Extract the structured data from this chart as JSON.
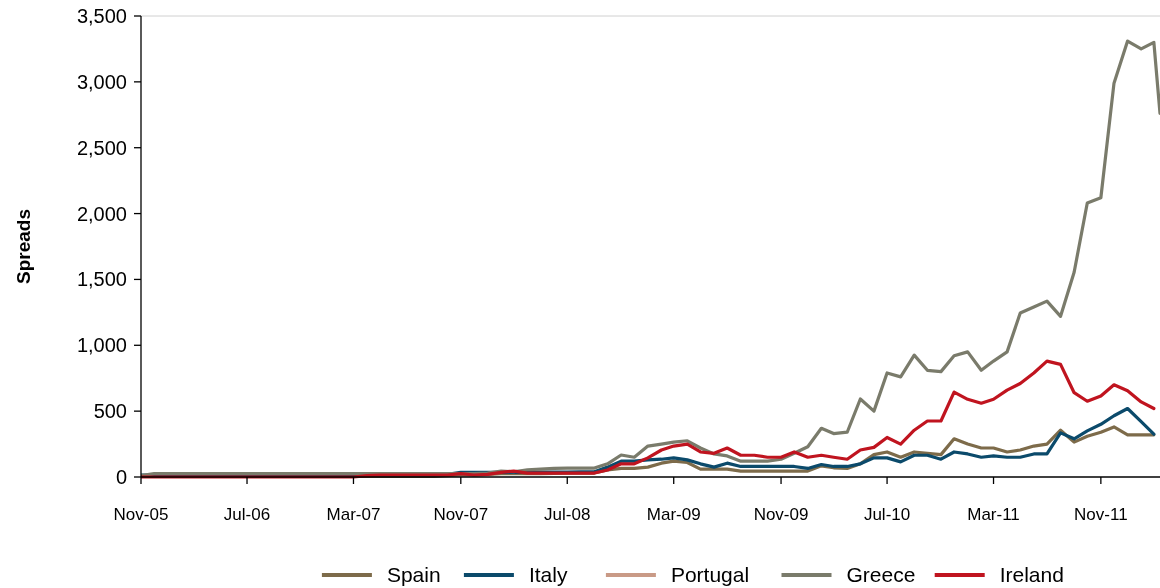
{
  "chart_data": {
    "type": "line",
    "ylabel": "Spreads",
    "x": [
      "2005-11",
      "2005-12",
      "2006-01",
      "2006-02",
      "2006-03",
      "2006-04",
      "2006-05",
      "2006-06",
      "2006-07",
      "2006-08",
      "2006-09",
      "2006-10",
      "2006-11",
      "2006-12",
      "2007-01",
      "2007-02",
      "2007-03",
      "2007-04",
      "2007-05",
      "2007-06",
      "2007-07",
      "2007-08",
      "2007-09",
      "2007-10",
      "2007-11",
      "2007-12",
      "2008-01",
      "2008-02",
      "2008-03",
      "2008-04",
      "2008-05",
      "2008-06",
      "2008-07",
      "2008-08",
      "2008-09",
      "2008-10",
      "2008-11",
      "2008-12",
      "2009-01",
      "2009-02",
      "2009-03",
      "2009-04",
      "2009-05",
      "2009-06",
      "2009-07",
      "2009-08",
      "2009-09",
      "2009-10",
      "2009-11",
      "2009-12",
      "2010-01",
      "2010-02",
      "2010-03",
      "2010-04",
      "2010-05",
      "2010-06",
      "2010-07",
      "2010-08",
      "2010-09",
      "2010-10",
      "2010-11",
      "2010-12",
      "2011-01",
      "2011-02",
      "2011-03",
      "2011-04",
      "2011-05",
      "2011-06",
      "2011-07",
      "2011-08",
      "2011-09",
      "2011-10",
      "2011-11",
      "2011-12",
      "2012-01",
      "2012-02",
      "2012-03",
      "2012-03-15"
    ],
    "series": [
      {
        "name": "Spain",
        "color": "#7d6b4a",
        "values": [
          5,
          5,
          5,
          5,
          5,
          5,
          5,
          5,
          5,
          5,
          5,
          5,
          5,
          5,
          5,
          5,
          5,
          5,
          5,
          5,
          5,
          5,
          5,
          10,
          15,
          15,
          20,
          25,
          25,
          25,
          25,
          28,
          30,
          30,
          30,
          53,
          65,
          65,
          75,
          105,
          120,
          110,
          60,
          60,
          60,
          45,
          45,
          45,
          45,
          45,
          45,
          85,
          70,
          65,
          100,
          170,
          190,
          150,
          190,
          180,
          170,
          290,
          250,
          220,
          220,
          190,
          205,
          235,
          250,
          355,
          265,
          310,
          340,
          380,
          320,
          320,
          320,
          null
        ]
      },
      {
        "name": "Italy",
        "color": "#0b4a6b",
        "values": [
          15,
          15,
          15,
          15,
          15,
          15,
          15,
          15,
          15,
          15,
          15,
          15,
          15,
          15,
          15,
          15,
          15,
          15,
          15,
          15,
          15,
          15,
          15,
          20,
          35,
          35,
          35,
          35,
          35,
          35,
          38,
          38,
          38,
          40,
          40,
          75,
          120,
          120,
          130,
          135,
          145,
          130,
          100,
          75,
          105,
          80,
          80,
          80,
          80,
          80,
          65,
          95,
          80,
          80,
          100,
          145,
          145,
          115,
          165,
          165,
          135,
          190,
          175,
          150,
          160,
          150,
          150,
          175,
          175,
          335,
          290,
          350,
          400,
          465,
          520,
          420,
          325,
          null
        ]
      },
      {
        "name": "Portugal",
        "color": "#c99a86",
        "values": [
          null,
          null,
          null,
          null,
          null,
          null,
          null,
          null,
          null,
          null,
          null,
          null,
          null,
          null,
          null,
          null,
          null,
          null,
          null,
          null,
          null,
          null,
          null,
          null,
          null,
          null,
          null,
          null,
          null,
          null,
          null,
          null,
          null,
          null,
          null,
          null,
          null,
          null,
          null,
          null,
          null,
          null,
          null,
          null,
          null,
          null,
          null,
          null,
          null,
          null,
          null,
          null,
          null,
          null,
          null,
          null,
          null,
          null,
          null,
          null,
          null,
          null,
          null,
          null,
          null,
          null,
          null,
          null,
          null,
          null,
          null,
          null,
          null,
          null,
          null,
          null,
          null,
          null
        ]
      },
      {
        "name": "Greece",
        "color": "#7a7b6b",
        "values": [
          10,
          25,
          25,
          25,
          25,
          25,
          25,
          25,
          25,
          25,
          25,
          25,
          25,
          25,
          25,
          25,
          25,
          25,
          25,
          25,
          25,
          25,
          25,
          25,
          25,
          25,
          30,
          45,
          40,
          55,
          60,
          65,
          68,
          68,
          68,
          100,
          167,
          150,
          235,
          250,
          265,
          275,
          220,
          175,
          160,
          120,
          120,
          120,
          135,
          180,
          230,
          370,
          330,
          340,
          592,
          500,
          790,
          760,
          925,
          810,
          800,
          920,
          950,
          810,
          880,
          950,
          1245,
          1290,
          1335,
          1220,
          1555,
          2080,
          2120,
          2990,
          3310,
          3250,
          3300,
          2760
        ]
      },
      {
        "name": "Ireland",
        "color": "#c0141f",
        "values": [
          0,
          0,
          0,
          0,
          0,
          0,
          0,
          0,
          0,
          0,
          0,
          0,
          0,
          0,
          0,
          0,
          0,
          10,
          15,
          15,
          15,
          15,
          15,
          15,
          25,
          15,
          20,
          35,
          45,
          30,
          30,
          30,
          30,
          30,
          30,
          53,
          100,
          100,
          145,
          205,
          235,
          250,
          190,
          180,
          220,
          165,
          165,
          150,
          150,
          190,
          150,
          165,
          150,
          135,
          205,
          225,
          300,
          250,
          355,
          425,
          425,
          645,
          590,
          560,
          590,
          660,
          710,
          790,
          880,
          855,
          640,
          575,
          615,
          700,
          655,
          570,
          520,
          null
        ]
      }
    ],
    "xlim": [
      "2005-11",
      "2012-03-15"
    ],
    "xticks": [
      {
        "value": "2005-11",
        "label": "Nov-05"
      },
      {
        "value": "2006-07",
        "label": "Jul-06"
      },
      {
        "value": "2007-03",
        "label": "Mar-07"
      },
      {
        "value": "2007-11",
        "label": "Nov-07"
      },
      {
        "value": "2008-07",
        "label": "Jul-08"
      },
      {
        "value": "2009-03",
        "label": "Mar-09"
      },
      {
        "value": "2009-11",
        "label": "Nov-09"
      },
      {
        "value": "2010-07",
        "label": "Jul-10"
      },
      {
        "value": "2011-03",
        "label": "Mar-11"
      },
      {
        "value": "2011-11",
        "label": "Nov-11"
      }
    ],
    "ylim": [
      0,
      3500
    ],
    "yticks": [
      {
        "value": 0,
        "label": "0"
      },
      {
        "value": 500,
        "label": "500"
      },
      {
        "value": 1000,
        "label": "1,000"
      },
      {
        "value": 1500,
        "label": "1,500"
      },
      {
        "value": 2000,
        "label": "2,000"
      },
      {
        "value": 2500,
        "label": "2,500"
      },
      {
        "value": 3000,
        "label": "3,000"
      },
      {
        "value": 3500,
        "label": "3,500"
      }
    ],
    "legend": "bottom",
    "marker": "none",
    "line_style": "solid"
  }
}
